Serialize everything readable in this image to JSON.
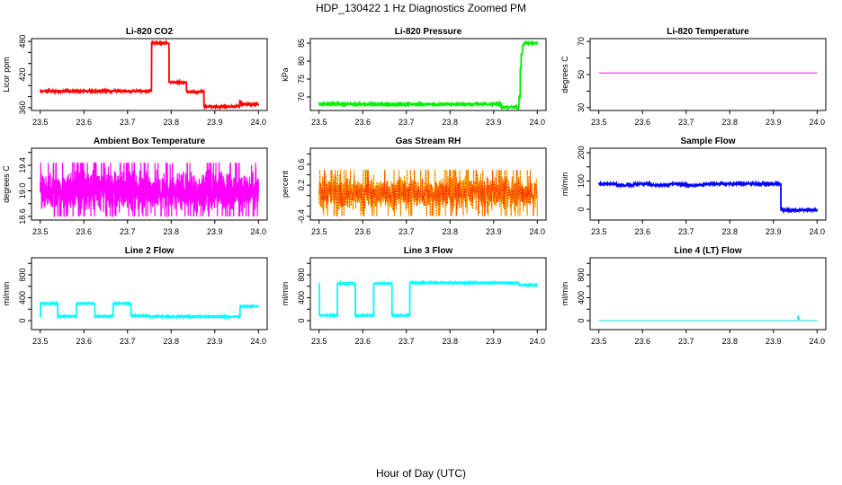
{
  "title": "HDP_130422  1 Hz Diagnostics Zoomed PM",
  "xlabel": "Hour of Day (UTC)",
  "chart_data": [
    {
      "type": "line",
      "title": "Li-820 CO2",
      "ylabel": "Licor ppm",
      "color": "#ff0000",
      "xlim": [
        23.48,
        24.02
      ],
      "ylim": [
        355,
        485
      ],
      "yticks": [
        360,
        380,
        400,
        420,
        440,
        460,
        480
      ],
      "ylabels": [
        360,
        420,
        480
      ],
      "segments": [
        [
          23.5,
          23.755,
          390
        ],
        [
          23.755,
          23.795,
          477
        ],
        [
          23.795,
          23.835,
          406
        ],
        [
          23.835,
          23.875,
          389
        ],
        [
          23.875,
          23.957,
          362
        ],
        [
          23.957,
          23.96,
          372
        ],
        [
          23.96,
          24.0,
          366
        ]
      ],
      "noise": 1.5
    },
    {
      "type": "line",
      "title": "Li-820 Pressure",
      "ylabel": "kPa",
      "color": "#00ee00",
      "xlim": [
        23.48,
        24.02
      ],
      "ylim": [
        66.25,
        86.25
      ],
      "yticks": [
        70,
        75,
        80,
        85
      ],
      "ylabels": [
        70,
        75,
        80,
        85
      ],
      "segments": [
        [
          23.5,
          23.917,
          68
        ],
        [
          23.917,
          23.958,
          67.2
        ],
        [
          23.958,
          23.961,
          70
        ],
        [
          23.961,
          23.963,
          78
        ],
        [
          23.963,
          23.966,
          82
        ],
        [
          23.966,
          23.97,
          84.5
        ],
        [
          23.97,
          24.0,
          85
        ]
      ],
      "noise": 0.15
    },
    {
      "type": "line",
      "title": "Li-820 Temperature",
      "ylabel": "degrees C",
      "color": "#ff00ff",
      "xlim": [
        23.48,
        24.02
      ],
      "ylim": [
        28.3,
        71.7
      ],
      "yticks": [
        30,
        40,
        50,
        60,
        70
      ],
      "ylabels": [
        30,
        50,
        70
      ],
      "segments": [
        [
          23.5,
          24.0,
          51
        ]
      ],
      "noise": 0
    },
    {
      "type": "line",
      "title": "Ambient Box Temperature",
      "ylabel": "degrees C",
      "color": "#ff00ff",
      "xlim": [
        23.48,
        24.02
      ],
      "ylim": [
        18.544,
        19.667
      ],
      "yticks": [
        18.6,
        18.8,
        19.0,
        19.2,
        19.4,
        19.6
      ],
      "ylabels": [
        "18.6",
        "19.0",
        "19.4"
      ],
      "segments": [
        [
          23.5,
          24.0,
          19.0
        ]
      ],
      "noise": 0.22,
      "range": [
        18.6,
        19.6
      ]
    },
    {
      "type": "line",
      "title": "Gas Stream RH",
      "ylabel": "percent",
      "color": "#ffcc00",
      "color2": "#ff2200",
      "xlim": [
        23.48,
        24.02
      ],
      "ylim": [
        -0.47,
        0.91
      ],
      "yticks": [
        -0.4,
        -0.2,
        0,
        0.2,
        0.4,
        0.6,
        0.8
      ],
      "ylabels": [
        "-0.4",
        "0.2",
        "0.6"
      ],
      "segments": [
        [
          23.5,
          24.0,
          0.05
        ]
      ],
      "noise": 0.22,
      "range": [
        -0.4,
        0.8
      ]
    },
    {
      "type": "line",
      "title": "Sample Flow",
      "ylabel": "ml/min",
      "color": "#0000ff",
      "xlim": [
        23.48,
        24.02
      ],
      "ylim": [
        -38,
        216
      ],
      "yticks": [
        0,
        50,
        100,
        150,
        200
      ],
      "ylabels": [
        0,
        100,
        200
      ],
      "segments": [
        [
          23.5,
          23.54,
          90
        ],
        [
          23.54,
          23.58,
          85
        ],
        [
          23.58,
          23.62,
          90
        ],
        [
          23.62,
          23.66,
          85
        ],
        [
          23.66,
          23.7,
          90
        ],
        [
          23.7,
          23.74,
          85
        ],
        [
          23.74,
          23.917,
          90
        ],
        [
          23.917,
          24.0,
          -3
        ]
      ],
      "noise": 2
    },
    {
      "type": "line",
      "title": "Line 2 Flow",
      "ylabel": "ml/min",
      "color": "#00ffff",
      "xlim": [
        23.48,
        24.02
      ],
      "ylim": [
        -157,
        1098
      ],
      "yticks": [
        0,
        200,
        400,
        600,
        800,
        1000
      ],
      "ylabels": [
        0,
        400,
        800
      ],
      "segments": [
        [
          23.5,
          23.501,
          75
        ],
        [
          23.501,
          23.54,
          300
        ],
        [
          23.54,
          23.583,
          75
        ],
        [
          23.583,
          23.625,
          300
        ],
        [
          23.625,
          23.667,
          75
        ],
        [
          23.667,
          23.708,
          300
        ],
        [
          23.708,
          23.75,
          85
        ],
        [
          23.75,
          23.958,
          70
        ],
        [
          23.958,
          24.0,
          250
        ]
      ],
      "noise": 4
    },
    {
      "type": "line",
      "title": "Line 3 Flow",
      "ylabel": "ml/min",
      "color": "#00ffff",
      "xlim": [
        23.48,
        24.02
      ],
      "ylim": [
        -157,
        1098
      ],
      "yticks": [
        0,
        200,
        400,
        600,
        800,
        1000
      ],
      "ylabels": [
        0,
        400,
        800
      ],
      "segments": [
        [
          23.5,
          23.501,
          640
        ],
        [
          23.501,
          23.542,
          90
        ],
        [
          23.542,
          23.583,
          650
        ],
        [
          23.583,
          23.625,
          90
        ],
        [
          23.625,
          23.667,
          650
        ],
        [
          23.667,
          23.708,
          90
        ],
        [
          23.708,
          23.958,
          660
        ],
        [
          23.958,
          24.0,
          620
        ]
      ],
      "noise": 4
    },
    {
      "type": "line",
      "title": "Line 4 (LT) Flow",
      "ylabel": "ml/min",
      "color": "#00e0e0",
      "xlim": [
        23.48,
        24.02
      ],
      "ylim": [
        -157,
        1098
      ],
      "yticks": [
        0,
        200,
        400,
        600,
        800,
        1000
      ],
      "ylabels": [
        0,
        400,
        800
      ],
      "segments": [
        [
          23.5,
          23.956,
          0
        ],
        [
          23.956,
          23.958,
          80
        ],
        [
          23.958,
          23.96,
          30
        ],
        [
          23.96,
          24.0,
          0
        ]
      ],
      "noise": 0
    }
  ],
  "xticks": [
    "23.5",
    "23.6",
    "23.7",
    "23.8",
    "23.9",
    "24.0"
  ]
}
